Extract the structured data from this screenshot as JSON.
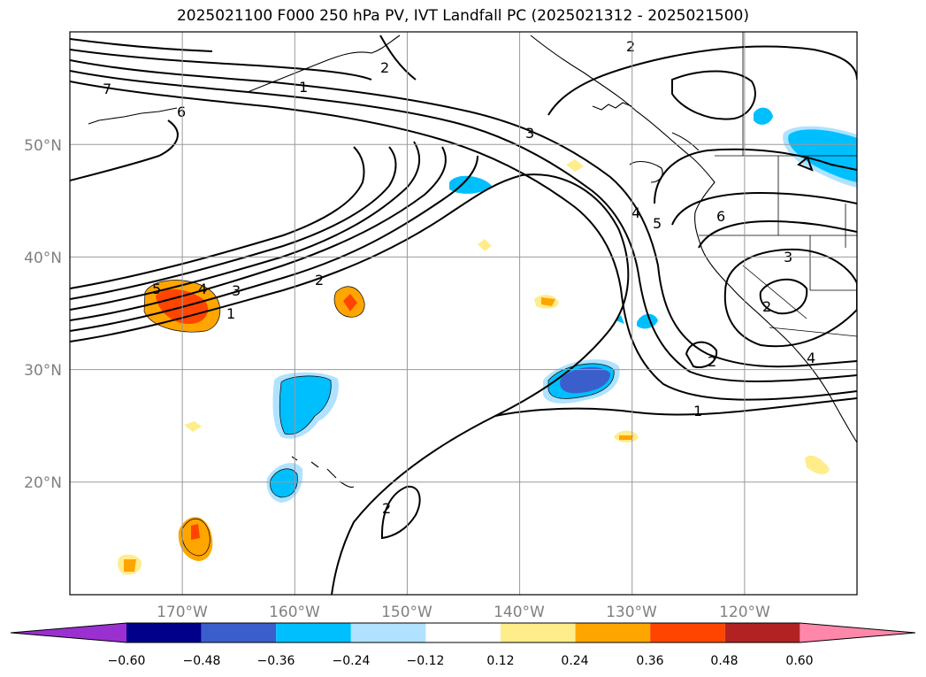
{
  "title": "2025021100 F000 250 hPa PV, IVT Landfall PC (2025021312 - 2025021500)",
  "map": {
    "lon_range": [
      -180,
      -110
    ],
    "lat_range": [
      10,
      60
    ],
    "lat_gridlines": [
      20,
      30,
      40,
      50
    ],
    "lon_gridlines": [
      -170,
      -160,
      -150,
      -140,
      -130,
      -120
    ],
    "lat_labels": [
      "20°N",
      "30°N",
      "40°N",
      "50°N"
    ],
    "lon_labels": [
      "170°W",
      "160°W",
      "150°W",
      "140°W",
      "130°W",
      "120°W"
    ]
  },
  "contour_labels": [
    "7",
    "6",
    "5",
    "4",
    "3",
    "2",
    "1",
    "2",
    "1",
    "2",
    "3",
    "4",
    "5",
    "6",
    "3",
    "2",
    "2",
    "4",
    "1",
    "2"
  ],
  "colorbar": {
    "ticks": [
      "−0.60",
      "−0.48",
      "−0.36",
      "−0.24",
      "−0.12",
      "0.12",
      "0.24",
      "0.36",
      "0.48",
      "0.60"
    ],
    "colors": [
      "#9b30d0",
      "#00008b",
      "#3a5fcd",
      "#00bfff",
      "#b0e2ff",
      "#ffffff",
      "#ffec8b",
      "#ffa500",
      "#ff4500",
      "#b22222",
      "#ff88aa"
    ]
  }
}
